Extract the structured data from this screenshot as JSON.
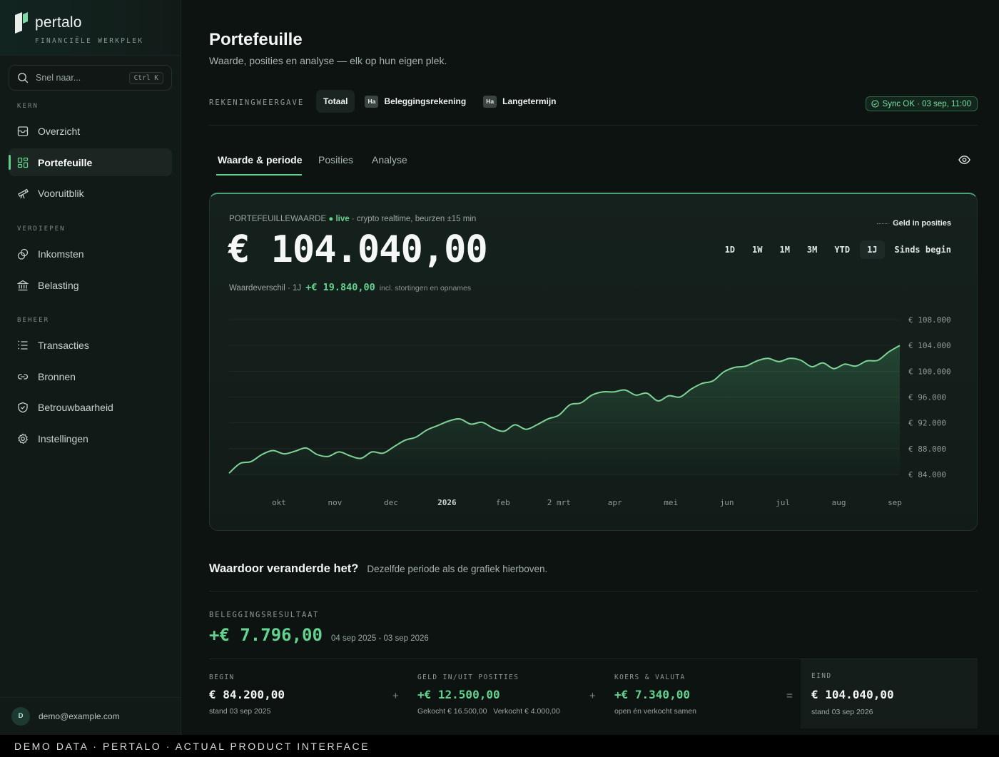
{
  "brand": {
    "name": "pertalo",
    "subtitle": "FINANCIËLE WERKPLEK"
  },
  "search": {
    "placeholder": "Snel naar...",
    "shortcut": "Ctrl K"
  },
  "sidebar": {
    "sections": [
      {
        "label": "KERN",
        "items": [
          {
            "label": "Overzicht",
            "icon": "inbox-icon"
          },
          {
            "label": "Portefeuille",
            "icon": "grid-icon",
            "active": true
          },
          {
            "label": "Vooruitblik",
            "icon": "telescope-icon"
          }
        ]
      },
      {
        "label": "VERDIEPEN",
        "items": [
          {
            "label": "Inkomsten",
            "icon": "coins-icon"
          },
          {
            "label": "Belasting",
            "icon": "bank-icon"
          }
        ]
      },
      {
        "label": "BEHEER",
        "items": [
          {
            "label": "Transacties",
            "icon": "list-icon"
          },
          {
            "label": "Bronnen",
            "icon": "link-icon"
          },
          {
            "label": "Betrouwbaarheid",
            "icon": "shield-icon"
          },
          {
            "label": "Instellingen",
            "icon": "gear-icon"
          }
        ]
      }
    ]
  },
  "user": {
    "initial": "D",
    "email": "demo@example.com"
  },
  "page": {
    "title": "Portefeuille",
    "subtitle": "Waarde, posities en analyse — elk op hun eigen plek."
  },
  "accounts": {
    "label": "REKENINGWEERGAVE",
    "options": [
      {
        "label": "Totaal",
        "badge": "",
        "selected": true
      },
      {
        "label": "Beleggingsrekening",
        "badge": "Ha",
        "selected": false
      },
      {
        "label": "Langetermijn",
        "badge": "Ha",
        "selected": false
      }
    ],
    "sync": "Sync OK · 03 sep, 11:00"
  },
  "tabs": [
    {
      "label": "Waarde & periode",
      "active": true
    },
    {
      "label": "Posities",
      "active": false
    },
    {
      "label": "Analyse",
      "active": false
    }
  ],
  "value_card": {
    "label": "PORTEFEUILLEWAARDE",
    "live": "live",
    "live_note": "· crypto realtime, beurzen ±15 min",
    "value": "€ 104.040,00",
    "diff_label": "Waardeverschil · 1J",
    "diff_value": "+€ 19.840,00",
    "diff_note": "incl. stortingen en opnames",
    "legend": "Geld in posities",
    "ranges": [
      "1D",
      "1W",
      "1M",
      "3M",
      "YTD",
      "1J",
      "Sinds begin"
    ],
    "selected_range": "1J"
  },
  "colors": {
    "accent": "#63d28f",
    "line": "#7fd396",
    "background": "#0c1311"
  },
  "chart_data": {
    "type": "area",
    "title": "",
    "xlabel": "",
    "ylabel": "",
    "x_ticks": [
      "okt",
      "nov",
      "dec",
      "2026",
      "feb",
      "2 mrt",
      "apr",
      "mei",
      "jun",
      "jul",
      "aug",
      "sep"
    ],
    "y_ticks": [
      "€ 84.000",
      "€ 88.000",
      "€ 92.000",
      "€ 96.000",
      "€ 100.000",
      "€ 104.000",
      "€ 108.000"
    ],
    "ylim": [
      84000,
      108000
    ],
    "grid": true,
    "series": [
      {
        "values": [
          84200,
          85700,
          86000,
          87100,
          87700,
          87200,
          87600,
          88100,
          87100,
          86800,
          87500,
          86900,
          86500,
          87500,
          87300,
          88300,
          89300,
          89800,
          90900,
          91600,
          92300,
          92600,
          91800,
          92100,
          91200,
          90700,
          91700,
          91000,
          91700,
          92600,
          93200,
          94800,
          95100,
          96300,
          96800,
          96800,
          97100,
          96300,
          96600,
          95400,
          96200,
          96000,
          97200,
          98100,
          98500,
          99900,
          100600,
          100800,
          101600,
          102000,
          101500,
          102000,
          101700,
          100700,
          101300,
          100400,
          101100,
          100800,
          101600,
          101700,
          103000,
          104000
        ]
      }
    ]
  },
  "breakdown": {
    "title": "Waardoor veranderde het?",
    "subtitle": "Dezelfde periode als de grafiek hierboven.",
    "result_label": "BELEGGINGSRESULTAAT",
    "result_value": "+€ 7.796,00",
    "result_period": "04 sep 2025 - 03 sep 2026",
    "begin": {
      "label": "BEGIN",
      "value": "€ 84.200,00",
      "note": "stand 03 sep 2025"
    },
    "flows": {
      "label": "GELD IN/UIT POSITIES",
      "value": "+€ 12.500,00",
      "bought": "Gekocht € 16.500,00",
      "sold": "Verkocht € 4.000,00"
    },
    "fx": {
      "label": "KOERS & VALUTA",
      "value": "+€ 7.340,00",
      "note": "open én verkocht samen"
    },
    "end": {
      "label": "EIND",
      "value": "€ 104.040,00",
      "note": "stand 03 sep 2026"
    },
    "ops": [
      "+",
      "+",
      "="
    ]
  },
  "footer": "DEMO DATA · PERTALO · ACTUAL PRODUCT INTERFACE"
}
